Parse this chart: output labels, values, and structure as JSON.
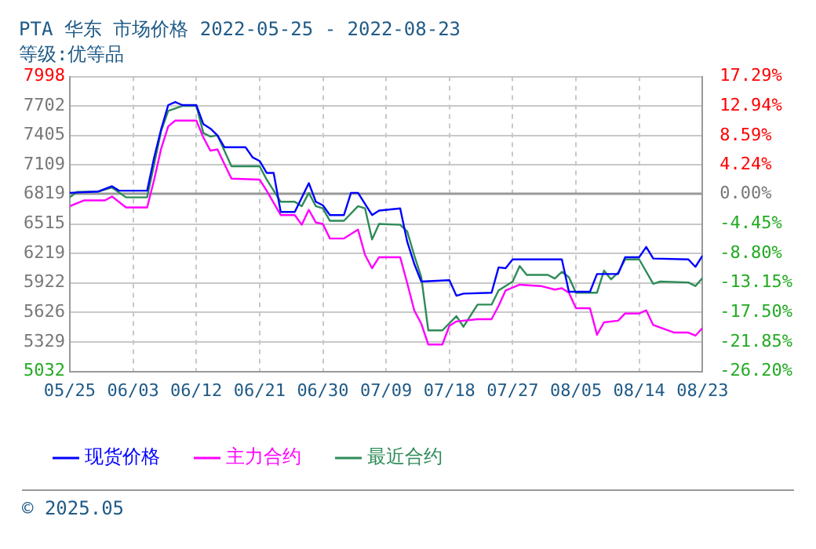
{
  "chart_data": {
    "type": "line",
    "title": "PTA 华东 市场价格 2022-05-25 - 2022-08-23",
    "subtitle": "等级:优等品",
    "ylim": [
      5032,
      7998
    ],
    "yticks": [
      5032,
      5329,
      5626,
      5922,
      6219,
      6515,
      6819,
      7109,
      7405,
      7702,
      7998
    ],
    "y2lim": [
      -26.2,
      17.29
    ],
    "y2ticks": [
      {
        "value": -26.2,
        "label": "-26.20%"
      },
      {
        "value": -21.85,
        "label": "-21.85%"
      },
      {
        "value": -17.5,
        "label": "-17.50%"
      },
      {
        "value": -13.15,
        "label": "-13.15%"
      },
      {
        "value": -8.8,
        "label": "-8.80%"
      },
      {
        "value": -4.45,
        "label": "-4.45%"
      },
      {
        "value": 0,
        "label": "0.00%"
      },
      {
        "value": 4.24,
        "label": "4.24%"
      },
      {
        "value": 8.59,
        "label": "8.59%"
      },
      {
        "value": 12.94,
        "label": "12.94%"
      },
      {
        "value": 17.29,
        "label": "17.29%"
      }
    ],
    "xlim": [
      "--05-25",
      "--08-23"
    ],
    "xticks": [
      {
        "value": "--05-25",
        "label": "05/25"
      },
      {
        "value": "--06-03",
        "label": "06/03"
      },
      {
        "value": "--06-12",
        "label": "06/12"
      },
      {
        "value": "--06-21",
        "label": "06/21"
      },
      {
        "value": "--06-30",
        "label": "06/30"
      },
      {
        "value": "--07-09",
        "label": "07/09"
      },
      {
        "value": "--07-18",
        "label": "07/18"
      },
      {
        "value": "--07-27",
        "label": "07/27"
      },
      {
        "value": "--08-05",
        "label": "08/05"
      },
      {
        "value": "--08-14",
        "label": "08/14"
      },
      {
        "value": "--08-23",
        "label": "08/23"
      }
    ],
    "grid": true,
    "legend": "bottom",
    "marker": "none",
    "line_style": "solid",
    "ref_lines": [
      {
        "axis": "y2",
        "value": 0,
        "color": "#999999"
      }
    ],
    "annotations": [
      "© 2025.05"
    ],
    "series": [
      {
        "name": "现货价格",
        "color": "#0000ff",
        "x": [
          "--05-25",
          "--05-29",
          "--05-31",
          "--06-01",
          "--06-05",
          "--06-06",
          "--06-07",
          "--06-08",
          "--06-09",
          "--06-10",
          "--06-12",
          "--06-13",
          "--06-14",
          "--06-15",
          "--06-16",
          "--06-19",
          "--06-20",
          "--06-21",
          "--06-22",
          "--06-23",
          "--06-24",
          "--06-26",
          "--06-27",
          "--06-28",
          "--06-29",
          "--06-30",
          "--07-01",
          "--07-03",
          "--07-04",
          "--07-05",
          "--07-07",
          "--07-08",
          "--07-11",
          "--07-12",
          "--07-13",
          "--07-14",
          "--07-18",
          "--07-19",
          "--07-20",
          "--07-24",
          "--07-25",
          "--07-26",
          "--07-27",
          "--08-03",
          "--08-04",
          "--08-07",
          "--08-08",
          "--08-11",
          "--08-12",
          "--08-14",
          "--08-15",
          "--08-16",
          "--08-21",
          "--08-22",
          "--08-23"
        ],
        "values": [
          6828,
          6841,
          6895,
          6850,
          6850,
          7185,
          7470,
          7711,
          7742,
          7711,
          7711,
          7519,
          7475,
          7407,
          7287,
          7287,
          7185,
          7149,
          7029,
          7029,
          6636,
          6636,
          6780,
          6926,
          6739,
          6703,
          6605,
          6605,
          6828,
          6828,
          6605,
          6650,
          6672,
          6337,
          6114,
          5936,
          5950,
          5793,
          5815,
          5824,
          6079,
          6070,
          6159,
          6159,
          5833,
          5833,
          6012,
          6012,
          6181,
          6181,
          6284,
          6168,
          6159,
          6084,
          6195
        ]
      },
      {
        "name": "主力合约",
        "color": "#ff00ff",
        "x": [
          "--05-25",
          "--05-27",
          "--05-30",
          "--05-31",
          "--06-02",
          "--06-05",
          "--06-06",
          "--06-07",
          "--06-08",
          "--06-09",
          "--06-12",
          "--06-13",
          "--06-14",
          "--06-15",
          "--06-16",
          "--06-17",
          "--06-21",
          "--06-22",
          "--06-24",
          "--06-26",
          "--06-27",
          "--06-28",
          "--06-29",
          "--06-30",
          "--07-01",
          "--07-03",
          "--07-05",
          "--07-06",
          "--07-07",
          "--07-08",
          "--07-11",
          "--07-12",
          "--07-13",
          "--07-14",
          "--07-15",
          "--07-17",
          "--07-18",
          "--07-19",
          "--07-22",
          "--07-24",
          "--07-25",
          "--07-26",
          "--07-28",
          "--07-31",
          "--08-02",
          "--08-03",
          "--08-04",
          "--08-05",
          "--08-07",
          "--08-08",
          "--08-09",
          "--08-11",
          "--08-12",
          "--08-14",
          "--08-15",
          "--08-16",
          "--08-19",
          "--08-21",
          "--08-22",
          "--08-23"
        ],
        "values": [
          6694,
          6752,
          6752,
          6792,
          6681,
          6681,
          6962,
          7274,
          7497,
          7555,
          7555,
          7385,
          7252,
          7265,
          7118,
          6971,
          6962,
          6850,
          6605,
          6605,
          6507,
          6658,
          6530,
          6516,
          6369,
          6369,
          6458,
          6204,
          6070,
          6181,
          6181,
          5920,
          5646,
          5512,
          5303,
          5303,
          5490,
          5535,
          5557,
          5557,
          5691,
          5847,
          5905,
          5891,
          5855,
          5869,
          5824,
          5668,
          5668,
          5401,
          5526,
          5543,
          5615,
          5615,
          5646,
          5499,
          5423,
          5423,
          5392,
          5468
        ]
      },
      {
        "name": "最近合约",
        "color": "#2e8b57",
        "x": [
          "--05-25",
          "--05-26",
          "--05-29",
          "--05-31",
          "--06-02",
          "--06-05",
          "--06-06",
          "--06-07",
          "--06-08",
          "--06-10",
          "--06-12",
          "--06-13",
          "--06-14",
          "--06-15",
          "--06-17",
          "--06-21",
          "--06-22",
          "--06-24",
          "--06-26",
          "--06-27",
          "--06-28",
          "--06-29",
          "--06-30",
          "--07-01",
          "--07-03",
          "--07-05",
          "--07-06",
          "--07-07",
          "--07-08",
          "--07-11",
          "--07-12",
          "--07-13",
          "--07-14",
          "--07-15",
          "--07-17",
          "--07-19",
          "--07-20",
          "--07-22",
          "--07-24",
          "--07-25",
          "--07-27",
          "--07-28",
          "--07-29",
          "--08-01",
          "--08-02",
          "--08-03",
          "--08-04",
          "--08-05",
          "--08-08",
          "--08-09",
          "--08-10",
          "--08-11",
          "--08-12",
          "--08-14",
          "--08-16",
          "--08-17",
          "--08-21",
          "--08-22",
          "--08-23"
        ],
        "values": [
          6783,
          6837,
          6841,
          6881,
          6783,
          6783,
          7118,
          7452,
          7653,
          7702,
          7702,
          7430,
          7394,
          7407,
          7096,
          7096,
          6962,
          6739,
          6739,
          6694,
          6828,
          6694,
          6672,
          6547,
          6547,
          6694,
          6672,
          6360,
          6516,
          6507,
          6440,
          6200,
          5980,
          5445,
          5445,
          5588,
          5481,
          5704,
          5704,
          5847,
          5936,
          6092,
          6003,
          6003,
          5967,
          6034,
          5980,
          5824,
          5824,
          6047,
          5958,
          6025,
          6159,
          6159,
          5914,
          5936,
          5927,
          5891,
          5972
        ]
      }
    ]
  }
}
